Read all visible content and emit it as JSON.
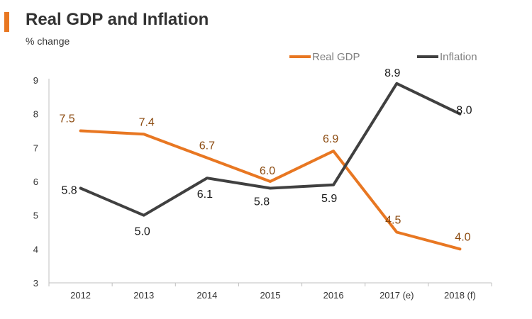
{
  "header": {
    "title": "Real GDP and Inflation",
    "subtitle": "% change"
  },
  "colors": {
    "gdp": "#E87722",
    "inflation": "#404040",
    "gdp_label": "#8B4A0F",
    "inflation_label": "#1a1a1a",
    "accent": "#E87722"
  },
  "chart_data": {
    "type": "line",
    "title": "Real GDP and Inflation",
    "ylabel": "% change",
    "xlabel": "",
    "categories": [
      "2012",
      "2013",
      "2014",
      "2015",
      "2016",
      "2017 (e)",
      "2018 (f)"
    ],
    "ylim": [
      3,
      9
    ],
    "yticks": [
      3,
      4,
      5,
      6,
      7,
      8,
      9
    ],
    "grid": false,
    "legend_position": "top-right",
    "series": [
      {
        "name": "Real GDP",
        "values": [
          7.5,
          7.4,
          6.7,
          6.0,
          6.9,
          4.5,
          4.0
        ],
        "labels": [
          "7.5",
          "7.4",
          "6.7",
          "6.0",
          "6.9",
          "4.5",
          "4.0"
        ]
      },
      {
        "name": "Inflation",
        "values": [
          5.8,
          5.0,
          6.1,
          5.8,
          5.9,
          8.9,
          8.0
        ],
        "labels": [
          "5.8",
          "5.0",
          "6.1",
          "5.8",
          "5.9",
          "8.9",
          "8.0"
        ]
      }
    ]
  }
}
